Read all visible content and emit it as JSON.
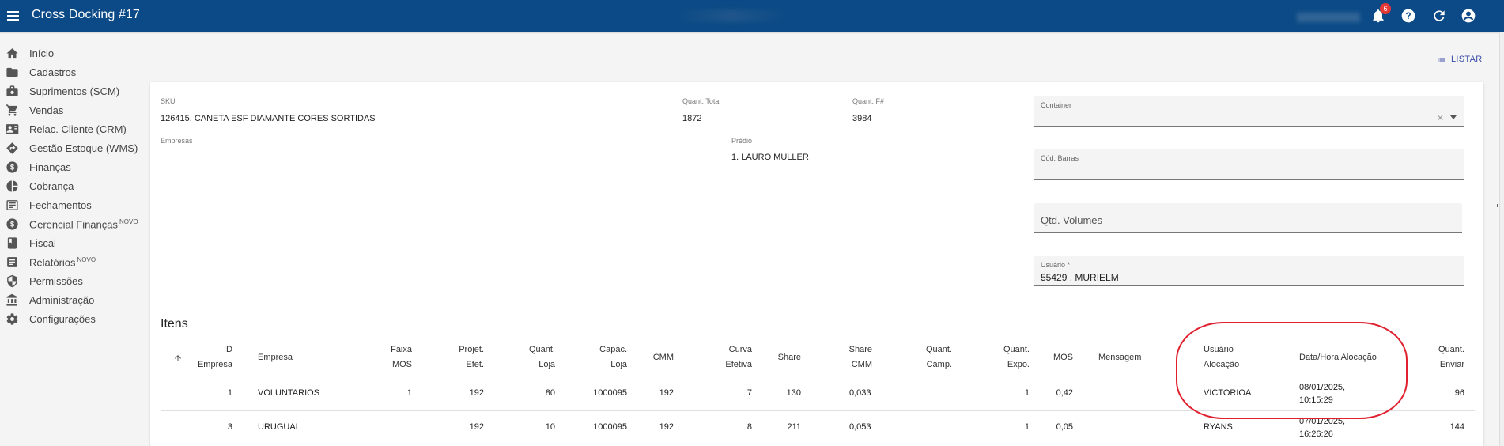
{
  "app": {
    "title": "Cross Docking #17",
    "notification_count": "6"
  },
  "sidebar": {
    "items": [
      {
        "label": "Início",
        "icon": "home-icon",
        "badge": ""
      },
      {
        "label": "Cadastros",
        "icon": "folder-icon",
        "badge": ""
      },
      {
        "label": "Suprimentos (SCM)",
        "icon": "box-icon",
        "badge": ""
      },
      {
        "label": "Vendas",
        "icon": "cart-icon",
        "badge": ""
      },
      {
        "label": "Relac. Cliente (CRM)",
        "icon": "contact-card-icon",
        "badge": ""
      },
      {
        "label": "Gestão Estoque (WMS)",
        "icon": "diamond-direction-icon",
        "badge": ""
      },
      {
        "label": "Finanças",
        "icon": "dollar-circle-icon",
        "badge": ""
      },
      {
        "label": "Cobrança",
        "icon": "pie-chart-icon",
        "badge": ""
      },
      {
        "label": "Fechamentos",
        "icon": "list-box-icon",
        "badge": ""
      },
      {
        "label": "Gerencial Finanças",
        "icon": "dollar-circle-icon",
        "badge": "NOVO"
      },
      {
        "label": "Fiscal",
        "icon": "book-icon",
        "badge": ""
      },
      {
        "label": "Relatórios",
        "icon": "report-icon",
        "badge": "NOVO"
      },
      {
        "label": "Permissões",
        "icon": "shield-icon",
        "badge": ""
      },
      {
        "label": "Administração",
        "icon": "bank-icon",
        "badge": ""
      },
      {
        "label": "Configurações",
        "icon": "gear-icon",
        "badge": ""
      }
    ]
  },
  "actions": {
    "listar_label": "LISTAR"
  },
  "form": {
    "sku_label": "SKU",
    "sku_value": "126415. CANETA ESF DIAMANTE CORES SORTIDAS",
    "quant_total_label": "Quant. Total",
    "quant_total_value": "1872",
    "quant_f_label": "Quant. F#",
    "quant_f_value": "3984",
    "empresas_label": "Empresas",
    "predio_label": "Prédio",
    "predio_value": "1. LAURO MULLER",
    "container_label": "Container",
    "cod_barras_label": "Cód. Barras",
    "qtd_volumes_placeholder": "Qtd. Volumes",
    "usuario_label": "Usuário *",
    "usuario_value": "55429 . MURIELM"
  },
  "items": {
    "title": "Itens",
    "headers": {
      "id_empresa": [
        "ID",
        "Empresa"
      ],
      "empresa": "Empresa",
      "faixa_mos": [
        "Faixa",
        "MOS"
      ],
      "projet_efet": [
        "Projet.",
        "Efet."
      ],
      "quant_loja": [
        "Quant.",
        "Loja"
      ],
      "capac_loja": [
        "Capac.",
        "Loja"
      ],
      "cmm": "CMM",
      "curva_efetiva": [
        "Curva",
        "Efetiva"
      ],
      "share": "Share",
      "share_cmm": [
        "Share",
        "CMM"
      ],
      "quant_camp": [
        "Quant.",
        "Camp."
      ],
      "quant_expo": [
        "Quant.",
        "Expo."
      ],
      "mos": "MOS",
      "mensagem": "Mensagem",
      "usuario_alocacao": [
        "Usuário",
        "Alocação"
      ],
      "data_hora_alocacao": "Data/Hora Alocação",
      "quant_enviar": [
        "Quant.",
        "Enviar"
      ]
    },
    "rows": [
      {
        "id": "1",
        "empresa": "VOLUNTARIOS",
        "faixa_mos": "1",
        "projet_efet": "192",
        "quant_loja": "80",
        "capac_loja": "1000095",
        "cmm": "192",
        "curva": "7",
        "share": "130",
        "share_cmm": "0,033",
        "quant_camp": "",
        "quant_expo": "1",
        "mos": "0,42",
        "mensagem": "",
        "usuario": "VICTORIOA",
        "data_hora_1": "08/01/2025,",
        "data_hora_2": "10:15:29",
        "quant_enviar": "96"
      },
      {
        "id": "3",
        "empresa": "URUGUAI",
        "faixa_mos": "",
        "projet_efet": "192",
        "quant_loja": "10",
        "capac_loja": "1000095",
        "cmm": "192",
        "curva": "8",
        "share": "211",
        "share_cmm": "0,053",
        "quant_camp": "",
        "quant_expo": "1",
        "mos": "0,05",
        "mensagem": "",
        "usuario": "RYANS",
        "data_hora_1": "07/01/2025,",
        "data_hora_2": "16:26:26",
        "quant_enviar": "144"
      }
    ]
  },
  "colors": {
    "topbar": "#0b4a86",
    "highlight": "#e0202e",
    "badge": "#e53935"
  }
}
